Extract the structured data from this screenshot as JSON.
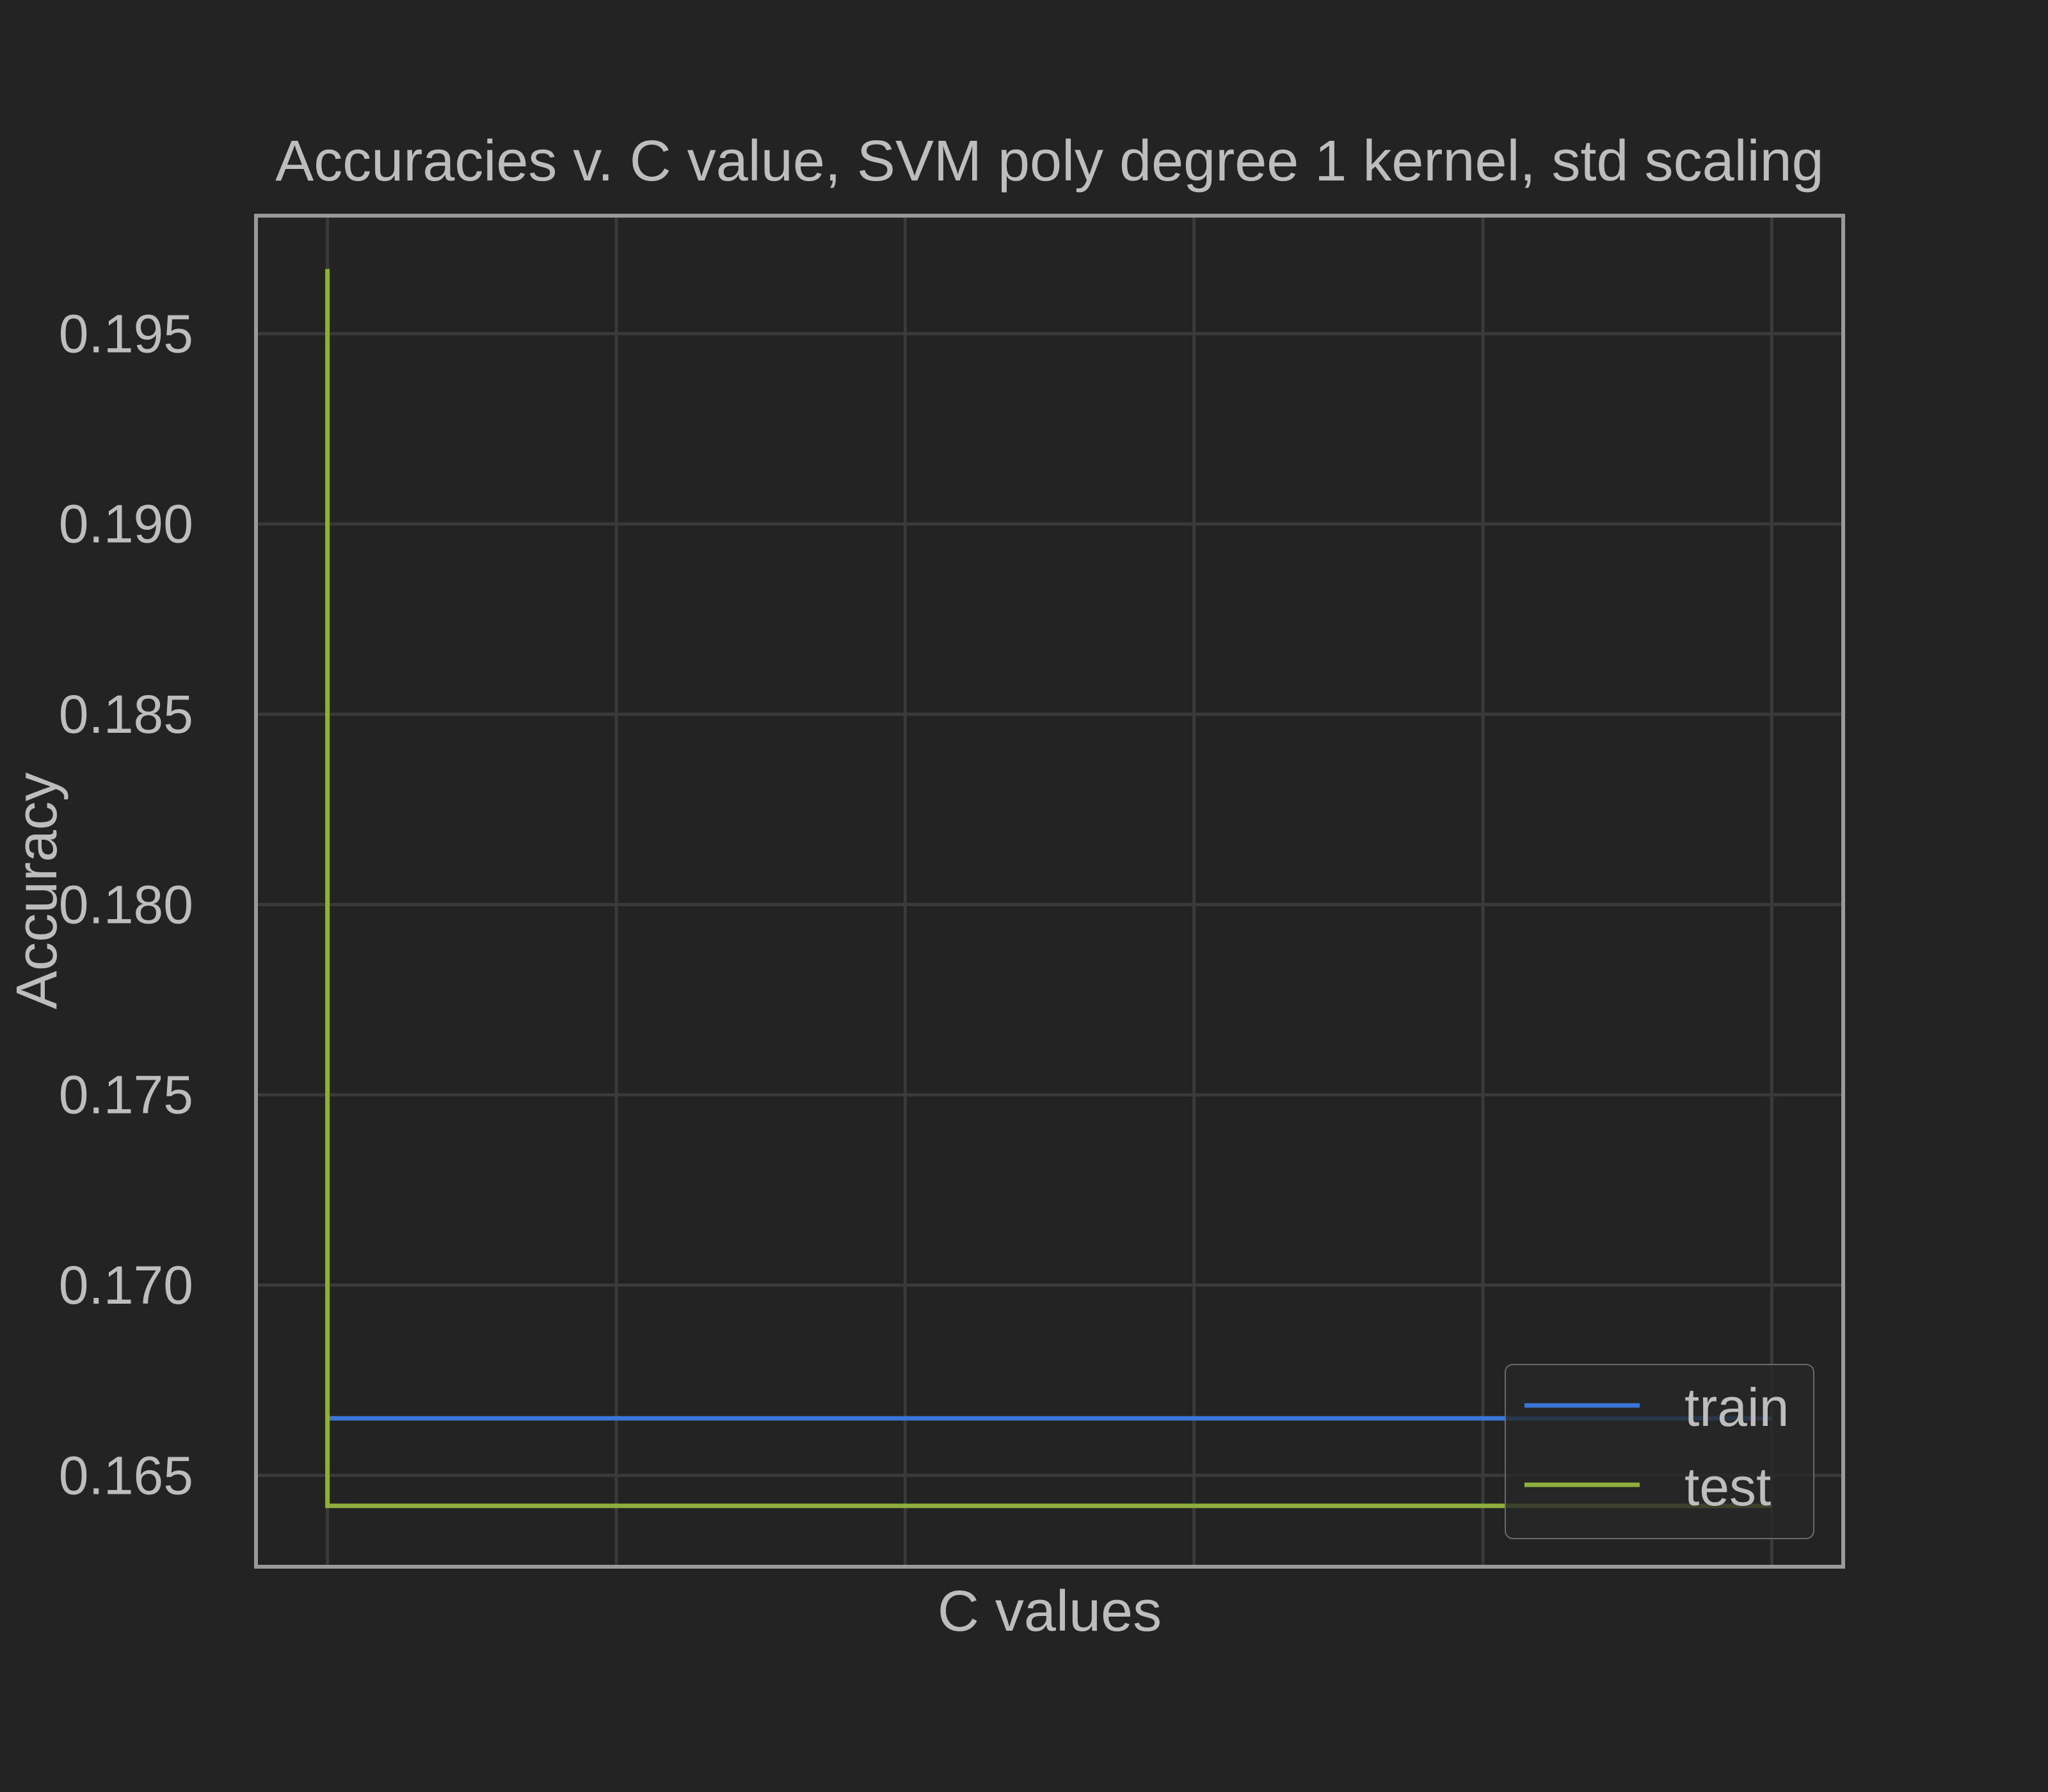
{
  "chart_data": {
    "type": "line",
    "title": "Accuracies v. C value, SVM poly degree 1 kernel,  std scaling",
    "xlabel": "C values",
    "ylabel": "Accuracy",
    "x": [
      0.0001,
      1000
    ],
    "xlim": [
      0.0001,
      1000
    ],
    "ylim": [
      0.1626,
      0.1981
    ],
    "yticks": [
      0.165,
      0.17,
      0.175,
      0.18,
      0.185,
      0.19,
      0.195
    ],
    "ytick_labels": [
      "0.165",
      "0.170",
      "0.175",
      "0.180",
      "0.185",
      "0.190",
      "0.195"
    ],
    "xtick_count": 6,
    "grid": true,
    "legend_position": "lower-right",
    "series": [
      {
        "name": "train",
        "color": "#3a76d6",
        "x": [
          0.0001,
          1000
        ],
        "y": [
          0.1665,
          0.1665
        ]
      },
      {
        "name": "test",
        "color": "#8fae3c",
        "x": [
          0.0001,
          0.0001,
          1000
        ],
        "y": [
          0.1967,
          0.1642,
          0.1642
        ]
      }
    ]
  }
}
